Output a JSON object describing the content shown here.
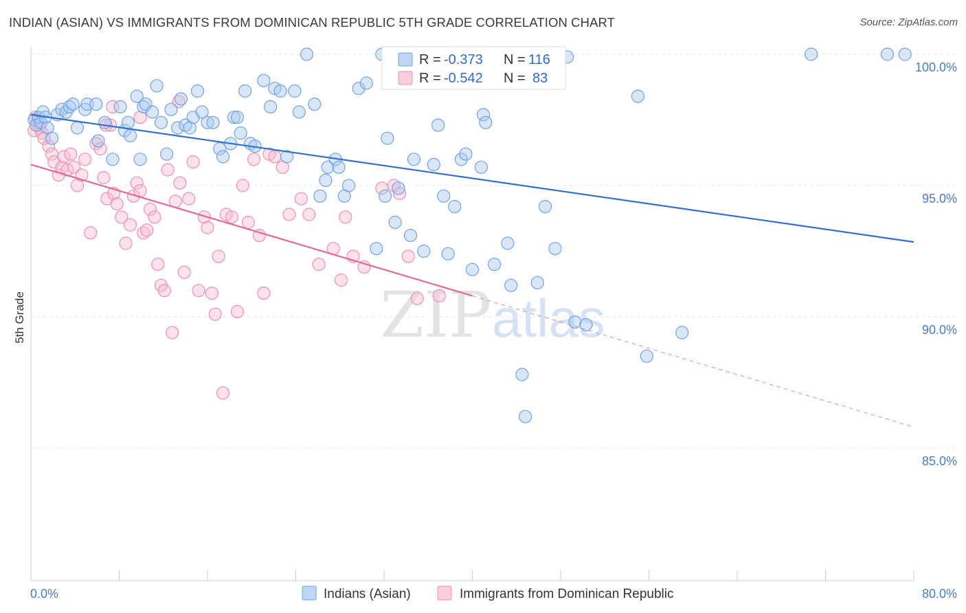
{
  "header": {
    "title": "INDIAN (ASIAN) VS IMMIGRANTS FROM DOMINICAN REPUBLIC 5TH GRADE CORRELATION CHART",
    "source": "Source: ZipAtlas.com"
  },
  "watermark": {
    "zip": "ZIP",
    "atlas": "atlas"
  },
  "stats": {
    "r_label": "R =",
    "n_label": "N =",
    "rows": [
      {
        "r": "-0.373",
        "n": "116",
        "color": "#6fa3e4"
      },
      {
        "r": "-0.542",
        "n": "83",
        "color": "#ee8fb1"
      }
    ]
  },
  "colors": {
    "blue_fill": "#a9c8f0",
    "blue_stroke": "#6fa3e4",
    "blue_line": "#2f6fce",
    "pink_fill": "#f6bcd0",
    "pink_stroke": "#ee8fb1",
    "pink_line": "#e06a95",
    "tick_text": "#4a7cc4",
    "grid": "#e6e6e6"
  },
  "chart_data": {
    "type": "scatter",
    "title": "INDIAN (ASIAN) VS IMMIGRANTS FROM DOMINICAN REPUBLIC 5TH GRADE CORRELATION CHART",
    "xlabel": "",
    "ylabel": "5th Grade",
    "xlim": [
      0,
      80
    ],
    "ylim": [
      80.5,
      100.8
    ],
    "x_tick_labels": [
      "0.0%",
      "80.0%"
    ],
    "y_ticks": [
      100,
      95,
      90,
      85
    ],
    "y_tick_labels": [
      "100.0%",
      "95.0%",
      "90.0%",
      "85.0%"
    ],
    "grid": true,
    "legend_position": "bottom",
    "series": [
      {
        "name": "Indians (Asian)",
        "color": "#6fa3e4",
        "trend": {
          "x": [
            0,
            80
          ],
          "y": [
            97.7,
            92.85
          ]
        },
        "points": [
          [
            0.3,
            97.5
          ],
          [
            0.5,
            97.3
          ],
          [
            0.7,
            97.6
          ],
          [
            0.9,
            97.4
          ],
          [
            1.1,
            97.8
          ],
          [
            1.3,
            97.6
          ],
          [
            1.5,
            97.2
          ],
          [
            1.9,
            96.8
          ],
          [
            2.4,
            97.7
          ],
          [
            2.8,
            97.9
          ],
          [
            3.2,
            97.8
          ],
          [
            3.5,
            98.0
          ],
          [
            3.8,
            98.1
          ],
          [
            4.2,
            97.2
          ],
          [
            4.9,
            97.9
          ],
          [
            5.1,
            98.1
          ],
          [
            5.9,
            98.1
          ],
          [
            6.1,
            96.7
          ],
          [
            6.7,
            97.4
          ],
          [
            7.4,
            96.0
          ],
          [
            8.1,
            98.0
          ],
          [
            8.5,
            97.1
          ],
          [
            8.8,
            97.4
          ],
          [
            9.0,
            96.9
          ],
          [
            9.6,
            98.4
          ],
          [
            9.9,
            96.0
          ],
          [
            10.2,
            98.0
          ],
          [
            10.4,
            98.1
          ],
          [
            11.0,
            97.8
          ],
          [
            11.4,
            98.8
          ],
          [
            11.8,
            97.4
          ],
          [
            12.3,
            96.2
          ],
          [
            12.7,
            97.9
          ],
          [
            13.3,
            97.2
          ],
          [
            13.6,
            98.3
          ],
          [
            14.0,
            97.3
          ],
          [
            14.4,
            97.2
          ],
          [
            14.7,
            97.6
          ],
          [
            15.1,
            98.6
          ],
          [
            15.5,
            97.8
          ],
          [
            16.0,
            97.4
          ],
          [
            16.5,
            97.4
          ],
          [
            17.1,
            96.4
          ],
          [
            17.4,
            96.1
          ],
          [
            18.1,
            96.6
          ],
          [
            18.4,
            97.6
          ],
          [
            18.7,
            97.6
          ],
          [
            19.0,
            97.0
          ],
          [
            19.4,
            98.6
          ],
          [
            19.9,
            96.6
          ],
          [
            20.3,
            96.5
          ],
          [
            21.1,
            99.0
          ],
          [
            21.7,
            98.0
          ],
          [
            22.1,
            98.7
          ],
          [
            22.6,
            98.6
          ],
          [
            23.2,
            96.1
          ],
          [
            23.9,
            98.6
          ],
          [
            24.3,
            97.8
          ],
          [
            25.0,
            100.0
          ],
          [
            25.7,
            98.1
          ],
          [
            26.2,
            94.6
          ],
          [
            26.7,
            95.2
          ],
          [
            26.9,
            95.7
          ],
          [
            27.6,
            96.0
          ],
          [
            27.9,
            95.7
          ],
          [
            28.4,
            94.6
          ],
          [
            28.8,
            95.0
          ],
          [
            29.7,
            98.7
          ],
          [
            30.4,
            98.9
          ],
          [
            31.3,
            92.6
          ],
          [
            31.8,
            100.0
          ],
          [
            32.1,
            94.6
          ],
          [
            32.3,
            96.8
          ],
          [
            33.0,
            93.6
          ],
          [
            33.3,
            94.9
          ],
          [
            34.4,
            93.1
          ],
          [
            34.7,
            96.0
          ],
          [
            35.6,
            92.5
          ],
          [
            36.5,
            95.8
          ],
          [
            36.9,
            97.3
          ],
          [
            37.4,
            94.6
          ],
          [
            37.8,
            92.4
          ],
          [
            38.4,
            94.2
          ],
          [
            39.0,
            96.0
          ],
          [
            39.4,
            96.2
          ],
          [
            40.0,
            91.8
          ],
          [
            40.8,
            95.7
          ],
          [
            41.0,
            97.7
          ],
          [
            41.2,
            97.4
          ],
          [
            42.0,
            92.0
          ],
          [
            43.2,
            92.8
          ],
          [
            43.5,
            91.2
          ],
          [
            44.5,
            87.8
          ],
          [
            44.8,
            86.2
          ],
          [
            45.9,
            91.3
          ],
          [
            46.6,
            94.2
          ],
          [
            47.5,
            92.6
          ],
          [
            48.6,
            99.9
          ],
          [
            49.3,
            89.8
          ],
          [
            50.3,
            89.7
          ],
          [
            55.0,
            98.4
          ],
          [
            55.8,
            88.5
          ],
          [
            59.0,
            89.4
          ],
          [
            70.7,
            100.0
          ],
          [
            77.6,
            100.0
          ],
          [
            79.2,
            100.0
          ]
        ]
      },
      {
        "name": "Immigrants from Dominican Republic",
        "color": "#ee8fb1",
        "trend": {
          "x": [
            0,
            40
          ],
          "y": [
            95.8,
            90.8
          ]
        },
        "trend_extension": {
          "x": [
            40,
            80
          ],
          "y": [
            90.8,
            85.8
          ]
        },
        "points": [
          [
            0.3,
            97.1
          ],
          [
            0.4,
            97.6
          ],
          [
            0.6,
            97.4
          ],
          [
            0.8,
            97.2
          ],
          [
            1.0,
            97.0
          ],
          [
            1.2,
            96.8
          ],
          [
            1.6,
            96.5
          ],
          [
            1.9,
            96.2
          ],
          [
            2.1,
            95.9
          ],
          [
            2.5,
            95.4
          ],
          [
            2.8,
            95.7
          ],
          [
            3.0,
            96.1
          ],
          [
            3.3,
            95.6
          ],
          [
            3.6,
            96.2
          ],
          [
            3.9,
            95.7
          ],
          [
            4.2,
            95.0
          ],
          [
            4.6,
            95.4
          ],
          [
            4.9,
            96.0
          ],
          [
            5.4,
            93.2
          ],
          [
            5.9,
            96.6
          ],
          [
            6.3,
            96.4
          ],
          [
            6.6,
            95.3
          ],
          [
            6.9,
            94.5
          ],
          [
            7.2,
            97.3
          ],
          [
            7.5,
            94.7
          ],
          [
            7.8,
            94.3
          ],
          [
            8.2,
            93.8
          ],
          [
            8.6,
            92.8
          ],
          [
            9.0,
            93.5
          ],
          [
            9.3,
            94.6
          ],
          [
            9.6,
            95.1
          ],
          [
            9.9,
            94.8
          ],
          [
            10.2,
            93.2
          ],
          [
            10.5,
            93.3
          ],
          [
            10.8,
            94.1
          ],
          [
            11.2,
            93.8
          ],
          [
            11.5,
            92.0
          ],
          [
            11.8,
            91.2
          ],
          [
            12.1,
            91.0
          ],
          [
            12.4,
            95.6
          ],
          [
            12.8,
            89.4
          ],
          [
            13.1,
            94.4
          ],
          [
            13.5,
            95.1
          ],
          [
            13.9,
            91.7
          ],
          [
            14.3,
            94.5
          ],
          [
            14.7,
            95.9
          ],
          [
            15.2,
            91.0
          ],
          [
            15.7,
            93.8
          ],
          [
            16.0,
            93.4
          ],
          [
            16.4,
            90.9
          ],
          [
            16.7,
            90.1
          ],
          [
            17.0,
            92.3
          ],
          [
            17.4,
            87.1
          ],
          [
            17.7,
            93.9
          ],
          [
            18.2,
            93.8
          ],
          [
            18.7,
            90.2
          ],
          [
            19.2,
            95.0
          ],
          [
            19.7,
            93.6
          ],
          [
            20.2,
            96.0
          ],
          [
            20.7,
            93.1
          ],
          [
            21.1,
            90.9
          ],
          [
            21.6,
            96.2
          ],
          [
            22.1,
            96.1
          ],
          [
            22.8,
            95.7
          ],
          [
            23.4,
            93.9
          ],
          [
            24.5,
            94.5
          ],
          [
            25.2,
            93.9
          ],
          [
            26.1,
            92.0
          ],
          [
            27.4,
            92.6
          ],
          [
            28.1,
            91.4
          ],
          [
            28.5,
            93.8
          ],
          [
            29.2,
            92.3
          ],
          [
            30.2,
            91.9
          ],
          [
            31.8,
            94.9
          ],
          [
            32.9,
            95.0
          ],
          [
            33.4,
            94.7
          ],
          [
            34.2,
            92.3
          ],
          [
            35.0,
            90.7
          ],
          [
            37.0,
            90.8
          ],
          [
            6.8,
            97.3
          ],
          [
            7.4,
            98.0
          ],
          [
            9.9,
            97.6
          ],
          [
            13.4,
            98.2
          ]
        ]
      }
    ]
  }
}
